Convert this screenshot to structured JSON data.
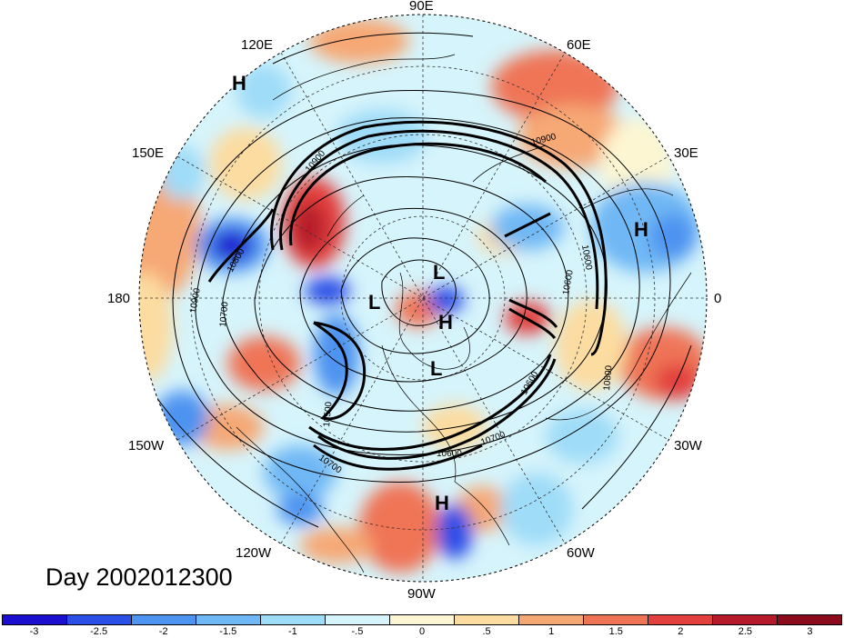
{
  "map": {
    "title": "Day 2002012300",
    "longitude_labels": {
      "deg90e": "90E",
      "deg60e": "60E",
      "deg30e": "30E",
      "deg0": "0",
      "deg30w": "30W",
      "deg60w": "60W",
      "deg90w": "90W",
      "deg120w": "120W",
      "deg150w": "150W",
      "deg180": "180",
      "deg150e": "150E",
      "deg120e": "120E"
    },
    "pressure_systems": [
      {
        "label": "H",
        "region": "far east Siberia"
      },
      {
        "label": "H",
        "region": "Europe"
      },
      {
        "label": "L",
        "region": "Arctic"
      },
      {
        "label": "L",
        "region": "Arctic west"
      },
      {
        "label": "H",
        "region": "Canadian Arctic"
      },
      {
        "label": "L",
        "region": "Hudson Bay"
      },
      {
        "label": "H",
        "region": "Caribbean"
      }
    ],
    "contour_labels": [
      "10900",
      "10900",
      "10900",
      "10700",
      "10700",
      "10600",
      "10600",
      "10800",
      "10600",
      "10700",
      "10500",
      "10600",
      "10800"
    ],
    "colorbar": {
      "colors": [
        "#1b0ecf",
        "#2a4ee6",
        "#4d93f0",
        "#6fb8f5",
        "#9fdcf8",
        "#d6f4fb",
        "#fdf6d2",
        "#fcdca0",
        "#f6a874",
        "#ef7456",
        "#e2403d",
        "#b51a2a",
        "#8b0a1c"
      ],
      "ticks": [
        "-3",
        "-2.5",
        "-2",
        "-1.5",
        "-1",
        "-.5",
        "0",
        ".5",
        "1",
        "1.5",
        "2",
        "2.5",
        "3"
      ]
    }
  }
}
